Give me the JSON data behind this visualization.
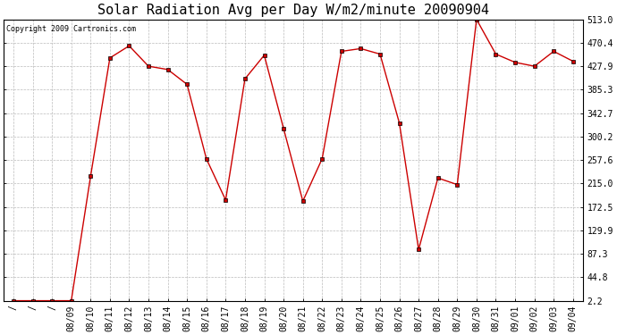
{
  "title": "Solar Radiation Avg per Day W/m2/minute 20090904",
  "copyright": "Copyright 2009 Cartronics.com",
  "x_labels": [
    "/",
    "/",
    "/",
    "08/09",
    "08/10",
    "08/11",
    "08/12",
    "08/13",
    "08/14",
    "08/15",
    "08/16",
    "08/17",
    "08/18",
    "08/19",
    "08/20",
    "08/21",
    "08/22",
    "08/23",
    "08/24",
    "08/25",
    "08/26",
    "08/27",
    "08/28",
    "08/29",
    "08/30",
    "08/31",
    "09/01",
    "09/02",
    "09/03",
    "09/04"
  ],
  "y_values": [
    2.2,
    2.2,
    2.2,
    2.2,
    228.0,
    443.0,
    465.0,
    428.0,
    422.0,
    395.0,
    260.0,
    185.0,
    405.0,
    448.0,
    315.0,
    183.0,
    260.0,
    455.0,
    460.0,
    450.0,
    325.0,
    95.0,
    225.0,
    213.0,
    513.0,
    450.0,
    435.0,
    428.0,
    455.0,
    437.0
  ],
  "y_ticks": [
    2.2,
    44.8,
    87.3,
    129.9,
    172.5,
    215.0,
    257.6,
    300.2,
    342.7,
    385.3,
    427.9,
    470.4,
    513.0
  ],
  "line_color": "#cc0000",
  "marker": "s",
  "marker_size": 2.5,
  "background_color": "#ffffff",
  "plot_bg_color": "#ffffff",
  "grid_color": "#bbbbbb",
  "title_fontsize": 11,
  "tick_fontsize": 7,
  "copyright_fontsize": 6,
  "ylim_min": 2.2,
  "ylim_max": 513.0
}
